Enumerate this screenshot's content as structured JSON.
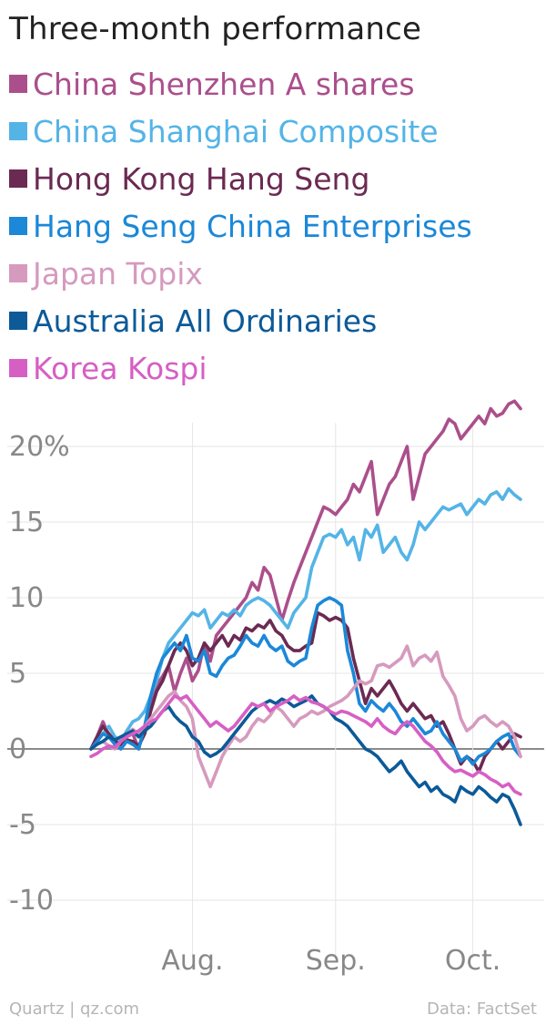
{
  "header": {
    "title": "Three-month performance"
  },
  "footer": {
    "credit": "Quartz | qz.com",
    "source": "Data: FactSet"
  },
  "chart_data": {
    "type": "line",
    "title": "Three-month performance",
    "xlabel": "",
    "ylabel": "",
    "ylim": [
      -12,
      24
    ],
    "y_ticks": [
      20,
      15,
      10,
      5,
      0,
      -5,
      -10
    ],
    "y_tick_labels": [
      "20%",
      "15",
      "10",
      "5",
      "0",
      "-5",
      "-10"
    ],
    "x_range": [
      0,
      72
    ],
    "x_ticks": [
      {
        "label": "Aug.",
        "x": 17
      },
      {
        "label": "Sep.",
        "x": 41
      },
      {
        "label": "Oct.",
        "x": 64
      }
    ],
    "grid": true,
    "legend": "top-left",
    "series": [
      {
        "name": "China Shenzhen A shares",
        "color": "#ab4f8c",
        "values": [
          0,
          0.8,
          1.8,
          0.9,
          0.6,
          0,
          0.8,
          1,
          0,
          1.5,
          3,
          4.2,
          4.8,
          5.5,
          3.8,
          5,
          6,
          4.5,
          5.2,
          7,
          5.8,
          7.5,
          8,
          8.5,
          9,
          9.5,
          10,
          11,
          10.5,
          12,
          11.5,
          10,
          8.5,
          9.8,
          11,
          12,
          13,
          14,
          15,
          16,
          15.8,
          15.5,
          16,
          16.5,
          17.5,
          17,
          18,
          19,
          15.5,
          16.5,
          17.5,
          18,
          19,
          20,
          16.5,
          18,
          19.5,
          20,
          20.5,
          21,
          21.8,
          21.5,
          20.5,
          21,
          21.5,
          22,
          21.5,
          22.5,
          22,
          22.2,
          22.8,
          23,
          22.5
        ]
      },
      {
        "name": "China Shanghai Composite",
        "color": "#54b4e6",
        "values": [
          0,
          0.5,
          1,
          1.5,
          0.8,
          0.5,
          1.2,
          1.8,
          2,
          2.5,
          3.5,
          4.5,
          6,
          7,
          7.5,
          8,
          8.5,
          9,
          8.8,
          9.2,
          8,
          8.5,
          9,
          8.8,
          9.2,
          8.8,
          9.5,
          9.8,
          10,
          9.8,
          9.5,
          9,
          8.5,
          8,
          9,
          9.5,
          10,
          12,
          13,
          14,
          14.2,
          14,
          14.5,
          13.5,
          14,
          12.5,
          14.5,
          14,
          14.8,
          13,
          13.5,
          14,
          13,
          12.5,
          13.5,
          15,
          14.5,
          15,
          15.5,
          16,
          15.8,
          16,
          16.2,
          15.5,
          16,
          16.5,
          16.2,
          16.8,
          17,
          16.5,
          17.2,
          16.8,
          16.5
        ]
      },
      {
        "name": "Hong Kong Hang Seng",
        "color": "#6b2a52",
        "values": [
          0,
          0.8,
          1.5,
          1,
          0.5,
          0.3,
          0.6,
          0.5,
          0.2,
          1,
          2.5,
          3.8,
          4.5,
          5.5,
          6.5,
          7,
          6.5,
          5.5,
          6,
          7,
          6.5,
          7,
          7.5,
          6.8,
          7.5,
          7.2,
          8,
          7.8,
          8.2,
          8,
          8.5,
          7.8,
          7.5,
          6.8,
          6.5,
          6.5,
          6.8,
          7,
          9,
          8.8,
          8.5,
          8.7,
          8.5,
          8,
          6,
          4.5,
          3,
          4,
          3.5,
          4,
          4.5,
          3.8,
          3,
          2.5,
          3,
          2.5,
          2,
          2.2,
          1.5,
          1.8,
          1,
          0,
          -1,
          -0.5,
          -0.8,
          -1.5,
          -0.5,
          0,
          0.5,
          0,
          0.5,
          1,
          0.8
        ]
      },
      {
        "name": "Hang Seng China Enterprises",
        "color": "#1b88d8",
        "values": [
          0,
          0.5,
          1,
          0.8,
          0.3,
          0,
          0.5,
          0.3,
          0,
          1.5,
          3.5,
          5,
          6,
          6.5,
          7,
          6.5,
          7.5,
          6,
          5.8,
          6.5,
          5,
          4.8,
          5.5,
          6,
          6.2,
          6.8,
          7.5,
          7,
          6.8,
          7.5,
          6.8,
          6.5,
          6.8,
          5.8,
          5.5,
          5.8,
          6,
          8,
          9.5,
          9.8,
          10,
          9.8,
          9.5,
          6.5,
          5,
          3,
          2.5,
          3.2,
          2.8,
          2.5,
          3,
          2.5,
          1.8,
          1.5,
          2,
          1.5,
          1,
          1.2,
          1.8,
          1,
          0.5,
          0,
          -0.8,
          -0.5,
          -1,
          -0.5,
          -0.3,
          0,
          0.5,
          0.8,
          1,
          0,
          -0.5
        ]
      },
      {
        "name": "Japan Topix",
        "color": "#d69abe",
        "values": [
          0,
          0.3,
          0.5,
          0.2,
          0,
          0.5,
          1,
          1.3,
          1,
          1.5,
          2,
          2.5,
          3,
          3.5,
          3.8,
          3.2,
          2.8,
          2,
          -0.5,
          -1.5,
          -2.5,
          -1.5,
          -0.5,
          0.2,
          0.8,
          0.5,
          0.8,
          1.5,
          2,
          1.8,
          2.2,
          2.8,
          2.5,
          2,
          1.5,
          2,
          2.2,
          2.5,
          2.3,
          2.5,
          2.8,
          3,
          3.2,
          3.5,
          4,
          4.5,
          4.3,
          4.5,
          5.5,
          5.6,
          5.4,
          5.7,
          6,
          6.8,
          5.5,
          6,
          6.2,
          5.8,
          6.4,
          4.8,
          4.2,
          3.5,
          2,
          1.2,
          1.5,
          2,
          2.2,
          1.8,
          1.5,
          1.8,
          1.5,
          0.8,
          -0.5
        ]
      },
      {
        "name": "Australia All Ordinaries",
        "color": "#0c5a98",
        "values": [
          0,
          0.3,
          0.5,
          0.8,
          0.6,
          0.8,
          1,
          1.2,
          0.8,
          1.2,
          1.5,
          2,
          2.5,
          2.8,
          2.2,
          1.8,
          1.5,
          0.8,
          0.5,
          -0.2,
          -0.5,
          -0.3,
          0,
          0.5,
          1,
          1.5,
          2,
          2.5,
          2.8,
          3,
          3.2,
          3,
          3.3,
          3.1,
          2.8,
          3,
          3.2,
          3.5,
          3,
          2.8,
          2.5,
          2,
          1.8,
          1.5,
          1,
          0.5,
          0,
          -0.2,
          -0.5,
          -1,
          -1.5,
          -1.2,
          -0.8,
          -1.5,
          -2,
          -2.5,
          -2.2,
          -2.8,
          -2.5,
          -3,
          -3.2,
          -3.5,
          -2.5,
          -2.8,
          -3,
          -2.5,
          -2.8,
          -3.2,
          -3.5,
          -3,
          -3.2,
          -4,
          -5
        ]
      },
      {
        "name": "Korea Kospi",
        "color": "#d65fc4",
        "values": [
          -0.5,
          -0.3,
          0,
          0.2,
          0.1,
          0.5,
          0.8,
          1,
          1.2,
          1.5,
          1.8,
          2,
          2.5,
          3,
          3.5,
          3.3,
          3.5,
          3,
          2.5,
          2,
          1.5,
          1.8,
          1.5,
          1.2,
          1.5,
          2,
          2.5,
          3,
          2.8,
          3,
          2.5,
          2.8,
          3,
          3.2,
          3.5,
          3.2,
          3.4,
          3.1,
          3,
          2.8,
          2.5,
          2.3,
          2.5,
          2.4,
          2.2,
          2,
          1.8,
          1.5,
          2,
          1.5,
          1.2,
          1,
          1.5,
          1.8,
          1.5,
          1,
          0.5,
          0.2,
          -0.2,
          -0.8,
          -1.2,
          -1.5,
          -1.4,
          -1.6,
          -1.8,
          -1.5,
          -1.7,
          -2,
          -2.2,
          -2.5,
          -2.3,
          -2.8,
          -3
        ]
      }
    ]
  }
}
